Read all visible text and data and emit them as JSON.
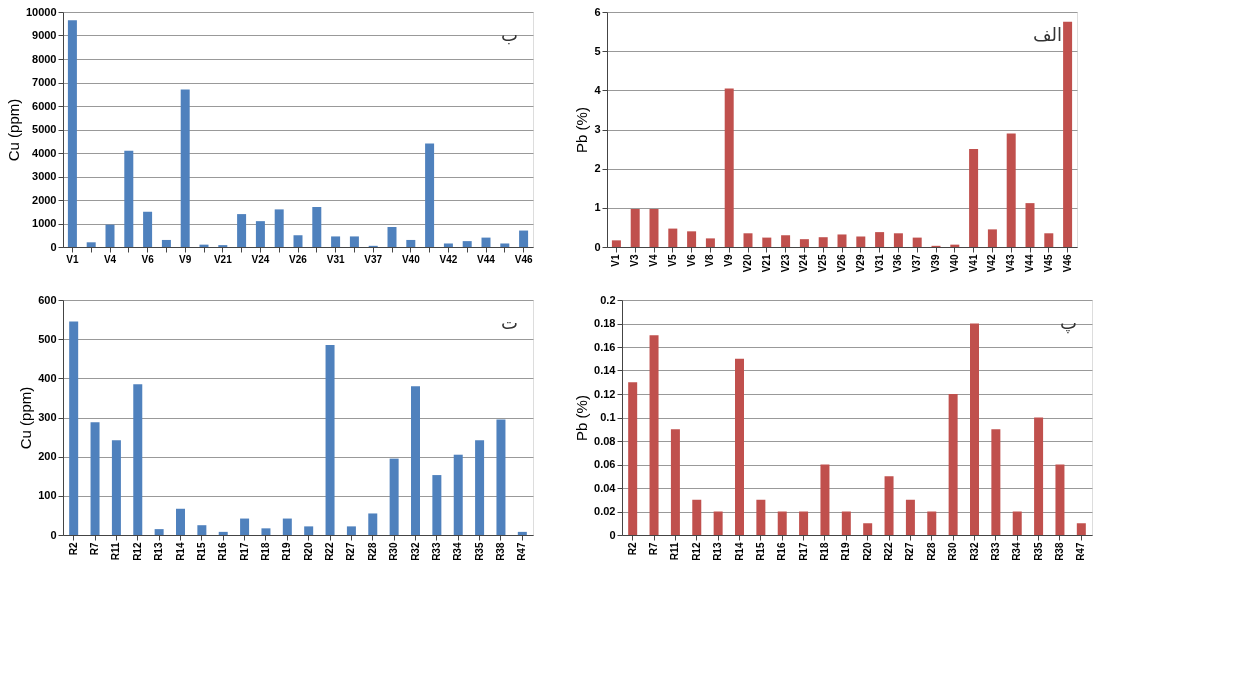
{
  "chart_data": [
    {
      "type": "bar",
      "ylabel": "Cu (ppm)",
      "annotations": [
        "ب"
      ],
      "grid": "y",
      "ylim": [
        0,
        10000
      ],
      "yticks": [
        0,
        1000,
        2000,
        3000,
        4000,
        5000,
        6000,
        7000,
        8000,
        9000,
        10000
      ],
      "categories": [
        "V1",
        null,
        "V4",
        null,
        "V6",
        null,
        "V9",
        null,
        "V21",
        null,
        "V24",
        null,
        "V26",
        null,
        "V31",
        null,
        "V37",
        null,
        "V40",
        null,
        "V42",
        null,
        "V44",
        null,
        "V46"
      ],
      "series": [
        {
          "color": "#4f81bd",
          "values": [
            9650,
            200,
            950,
            4100,
            1500,
            300,
            6700,
            100,
            80,
            1400,
            1100,
            1600,
            500,
            1700,
            450,
            450,
            50,
            850,
            300,
            4400,
            150,
            250,
            400,
            150,
            700
          ]
        }
      ]
    },
    {
      "type": "bar",
      "ylabel": "Pb (%)",
      "annotations": [
        "الف"
      ],
      "grid": "y",
      "ylim": [
        0,
        6
      ],
      "yticks": [
        0,
        1,
        2,
        3,
        4,
        5,
        6
      ],
      "categories": [
        "V1",
        "V3",
        "V4",
        "V5",
        "V6",
        "V8",
        "V9",
        "V20",
        "V21",
        "V23",
        "V24",
        "V25",
        "V26",
        "V29",
        "V31",
        "V36",
        "V37",
        "V39",
        "V40",
        "V41",
        "V42",
        "V43",
        "V44",
        "V45",
        "V46"
      ],
      "series": [
        {
          "color": "#c0504d",
          "values": [
            0.17,
            0.97,
            0.97,
            0.47,
            0.4,
            0.22,
            4.05,
            0.35,
            0.24,
            0.3,
            0.2,
            0.25,
            0.32,
            0.27,
            0.38,
            0.35,
            0.24,
            0.03,
            0.06,
            2.5,
            0.45,
            2.9,
            1.12,
            0.35,
            5.75
          ]
        }
      ]
    },
    {
      "type": "bar",
      "ylabel": "Cu (ppm)",
      "annotations": [
        "ت"
      ],
      "grid": "y",
      "ylim": [
        0,
        600
      ],
      "yticks": [
        0,
        100,
        200,
        300,
        400,
        500,
        600
      ],
      "categories": [
        "R2",
        "R7",
        "R11",
        "R12",
        "R13",
        "R14",
        "R15",
        "R16",
        "R17",
        "R18",
        "R19",
        "R20",
        "R22",
        "R27",
        "R28",
        "R30",
        "R32",
        "R33",
        "R34",
        "R35",
        "R38",
        "R47"
      ],
      "series": [
        {
          "color": "#4f81bd",
          "values": [
            545,
            288,
            242,
            385,
            15,
            67,
            25,
            8,
            42,
            17,
            42,
            22,
            485,
            22,
            55,
            195,
            380,
            153,
            205,
            242,
            295,
            8
          ]
        }
      ]
    },
    {
      "type": "bar",
      "ylabel": "Pb (%)",
      "annotations": [
        "پ"
      ],
      "grid": "y",
      "ylim": [
        0,
        0.2
      ],
      "yticks": [
        0,
        0.02,
        0.04,
        0.06,
        0.08,
        0.1,
        0.12,
        0.14,
        0.16,
        0.18,
        0.2
      ],
      "categories": [
        "R2",
        "R7",
        "R11",
        "R12",
        "R13",
        "R14",
        "R15",
        "R16",
        "R17",
        "R18",
        "R19",
        "R20",
        "R22",
        "R27",
        "R28",
        "R30",
        "R32",
        "R33",
        "R34",
        "R35",
        "R38",
        "R47"
      ],
      "series": [
        {
          "color": "#c0504d",
          "values": [
            0.13,
            0.17,
            0.09,
            0.03,
            0.02,
            0.15,
            0.03,
            0.02,
            0.02,
            0.06,
            0.02,
            0.01,
            0.05,
            0.03,
            0.02,
            0.12,
            0.18,
            0.09,
            0.02,
            0.1,
            0.06,
            0.01
          ]
        }
      ]
    }
  ]
}
